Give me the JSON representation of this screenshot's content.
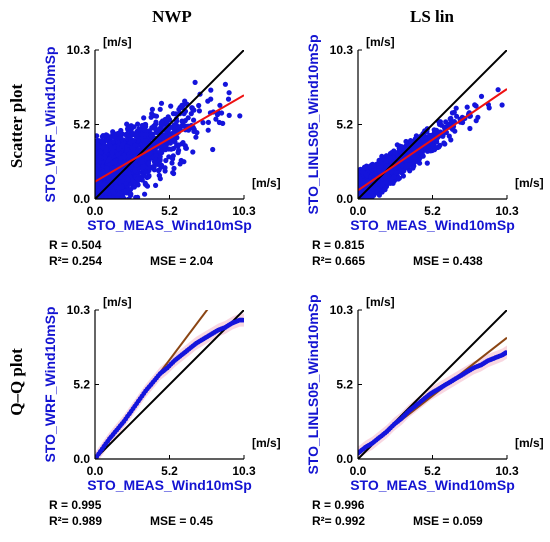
{
  "columns": [
    "NWP",
    "LS lin"
  ],
  "rows": [
    "Scatter plot",
    "Q–Q plot"
  ],
  "colors": {
    "points": "#1414dc",
    "regression": "#ee1111",
    "qq_fit": "#8b4513",
    "identity": "#000000",
    "band": "#f7c6d4",
    "label": "#1414d2"
  },
  "chart_data": [
    {
      "type": "scatter",
      "panel": "scatter-nwp",
      "xlabel": "STO_MEAS_Wind10mSp",
      "ylabel": "STO_WRF_Wind10mSp",
      "unit_x": "[m/s]",
      "unit_y": "[m/s]",
      "xlim": [
        0,
        10.3
      ],
      "ylim": [
        0,
        10.3
      ],
      "xticks": [
        "0.0",
        "5.2",
        "10.3"
      ],
      "yticks": [
        "0.0",
        "5.2",
        "10.3"
      ],
      "stats": {
        "r": "R = 0.504",
        "r2": "R²= 0.254",
        "mse": "MSE = 2.04"
      },
      "regression": {
        "intercept": 1.2,
        "slope": 0.58
      },
      "sample": {
        "count": 2600,
        "spread": 1.55,
        "seed": 11
      }
    },
    {
      "type": "scatter",
      "panel": "scatter-ls",
      "xlabel": "STO_MEAS_Wind10mSp",
      "ylabel": "STO_LINLS05_Wind10mSp",
      "unit_x": "[m/s]",
      "unit_y": "[m/s]",
      "xlim": [
        0,
        10.3
      ],
      "ylim": [
        0,
        10.3
      ],
      "xticks": [
        "0.0",
        "5.2",
        "10.3"
      ],
      "yticks": [
        "0.0",
        "5.2",
        "10.3"
      ],
      "stats": {
        "r": "R = 0.815",
        "r2": "R²= 0.665",
        "mse": "MSE = 0.438"
      },
      "regression": {
        "intercept": 0.6,
        "slope": 0.68
      },
      "sample": {
        "count": 2600,
        "spread": 0.68,
        "seed": 29
      }
    },
    {
      "type": "line",
      "panel": "qq-nwp",
      "xlabel": "STO_MEAS_Wind10mSp",
      "ylabel": "STO_WRF_Wind10mSp",
      "unit_x": "[m/s]",
      "unit_y": "[m/s]",
      "xlim": [
        0,
        10.3
      ],
      "ylim": [
        0,
        10.3
      ],
      "xticks": [
        "0.0",
        "5.2",
        "10.3"
      ],
      "yticks": [
        "0.0",
        "5.2",
        "10.3"
      ],
      "stats": {
        "r": "R = 0.995",
        "r2": "R²= 0.989",
        "mse": "MSE = 0.45"
      },
      "quantiles": [
        [
          0.0,
          0.0
        ],
        [
          0.5,
          0.7
        ],
        [
          1.0,
          1.4
        ],
        [
          1.5,
          2.0
        ],
        [
          2.0,
          2.6
        ],
        [
          2.5,
          3.3
        ],
        [
          3.0,
          4.0
        ],
        [
          3.5,
          4.7
        ],
        [
          4.0,
          5.3
        ],
        [
          4.5,
          5.9
        ],
        [
          5.0,
          6.3
        ],
        [
          5.5,
          6.8
        ],
        [
          6.0,
          7.2
        ],
        [
          6.5,
          7.6
        ],
        [
          7.0,
          8.0
        ],
        [
          7.5,
          8.3
        ],
        [
          8.0,
          8.6
        ],
        [
          8.5,
          8.9
        ],
        [
          9.0,
          9.1
        ],
        [
          9.5,
          9.4
        ],
        [
          10.0,
          9.6
        ],
        [
          10.3,
          9.6
        ]
      ],
      "fit": {
        "intercept": 0.0,
        "slope": 1.33
      }
    },
    {
      "type": "line",
      "panel": "qq-ls",
      "xlabel": "STO_MEAS_Wind10mSp",
      "ylabel": "STO_LINLS05_Wind10mSp",
      "unit_x": "[m/s]",
      "unit_y": "[m/s]",
      "xlim": [
        0,
        10.3
      ],
      "ylim": [
        0,
        10.3
      ],
      "xticks": [
        "0.0",
        "5.2",
        "10.3"
      ],
      "yticks": [
        "0.0",
        "5.2",
        "10.3"
      ],
      "stats": {
        "r": "R = 0.996",
        "r2": "R²= 0.992",
        "mse": "MSE = 0.059"
      },
      "quantiles": [
        [
          0.0,
          0.4
        ],
        [
          0.5,
          0.8
        ],
        [
          1.0,
          1.1
        ],
        [
          1.5,
          1.5
        ],
        [
          2.0,
          1.9
        ],
        [
          2.5,
          2.4
        ],
        [
          3.0,
          2.8
        ],
        [
          3.5,
          3.3
        ],
        [
          4.0,
          3.7
        ],
        [
          4.5,
          4.1
        ],
        [
          5.0,
          4.5
        ],
        [
          5.5,
          4.8
        ],
        [
          6.0,
          5.1
        ],
        [
          6.5,
          5.4
        ],
        [
          7.0,
          5.7
        ],
        [
          7.5,
          6.0
        ],
        [
          8.0,
          6.3
        ],
        [
          8.5,
          6.5
        ],
        [
          9.0,
          6.8
        ],
        [
          9.5,
          7.0
        ],
        [
          10.0,
          7.2
        ],
        [
          10.3,
          7.4
        ]
      ],
      "fit": {
        "intercept": 0.35,
        "slope": 0.78
      }
    }
  ]
}
